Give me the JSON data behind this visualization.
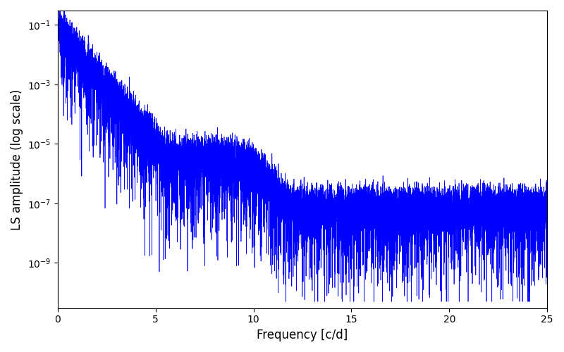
{
  "xlabel": "Frequency [c/d]",
  "ylabel": "LS amplitude (log scale)",
  "line_color": "#0000ff",
  "line_width": 0.5,
  "xlim": [
    0,
    25
  ],
  "ylim": [
    3e-11,
    0.3
  ],
  "yticks": [
    1e-09,
    1e-07,
    1e-05,
    0.001,
    0.1
  ],
  "xticks": [
    0,
    5,
    10,
    15,
    20,
    25
  ],
  "figsize": [
    8.0,
    5.0
  ],
  "dpi": 100,
  "n_points": 12000,
  "seed": 77
}
